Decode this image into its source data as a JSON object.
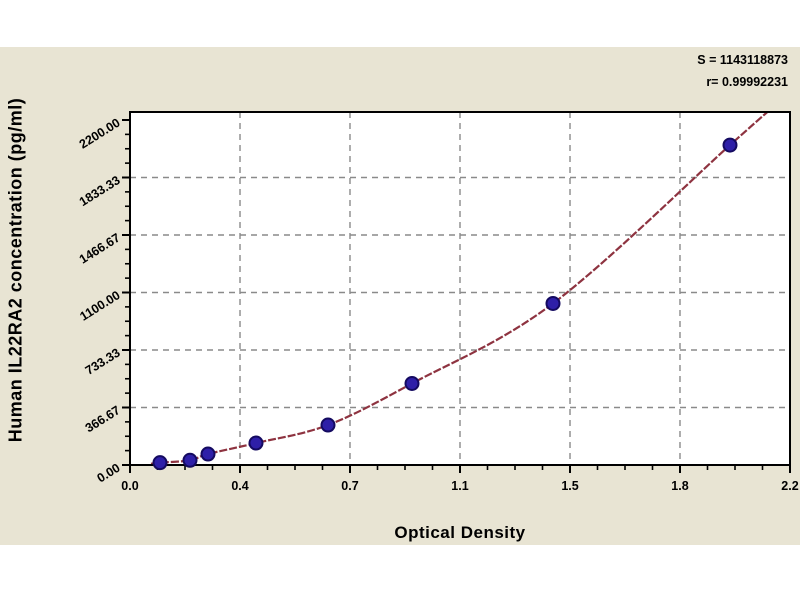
{
  "window": {
    "background": "#ffffff",
    "band_color": "#e8e4d3"
  },
  "stats": {
    "s_line": "S = 1143118873",
    "r_line": "r= 0.99992231"
  },
  "chart_data": {
    "type": "scatter",
    "title": "",
    "xlabel": "Optical Density",
    "ylabel": "Human IL22RA2 concentration (pg/ml)",
    "xlim": [
      0,
      2.2
    ],
    "ylim": [
      0,
      2200
    ],
    "grid": true,
    "legend_position": "none",
    "x_ticks": {
      "values": [
        0,
        0.3667,
        0.7333,
        1.1,
        1.4667,
        1.8333,
        2.2
      ],
      "labels": [
        "0.0",
        "0.4",
        "0.7",
        "1.1",
        "1.5",
        "1.8",
        "2.2"
      ]
    },
    "y_ticks": {
      "values": [
        0,
        366.67,
        733.33,
        1100,
        1466.67,
        1833.33,
        2200
      ],
      "labels": [
        "0.00",
        "366.67",
        "733.33",
        "1100.00",
        "1466.67",
        "1833.33",
        "2200.00"
      ]
    },
    "minor_ticks_per_interval": 3,
    "series": [
      {
        "name": "standard-points",
        "type": "scatter",
        "x": [
          0.1,
          0.2,
          0.26,
          0.42,
          0.66,
          0.94,
          1.41,
          2.0
        ],
        "y": [
          15,
          30,
          70,
          140,
          255,
          520,
          1030,
          2040
        ],
        "marker_fill": "#2e1fa8",
        "marker_edge": "#140a60"
      },
      {
        "name": "fitted-curve",
        "type": "line",
        "x": [
          0.07,
          0.1,
          0.2,
          0.26,
          0.42,
          0.66,
          0.94,
          1.41,
          2.0,
          2.13
        ],
        "y": [
          8,
          15,
          30,
          70,
          140,
          255,
          520,
          1030,
          2040,
          2260
        ],
        "color": "#8e3340"
      }
    ]
  },
  "colors": {
    "grid": "#8a8a8a",
    "frame": "#000000",
    "text": "#000000",
    "plot_fill": "#ffffff"
  }
}
